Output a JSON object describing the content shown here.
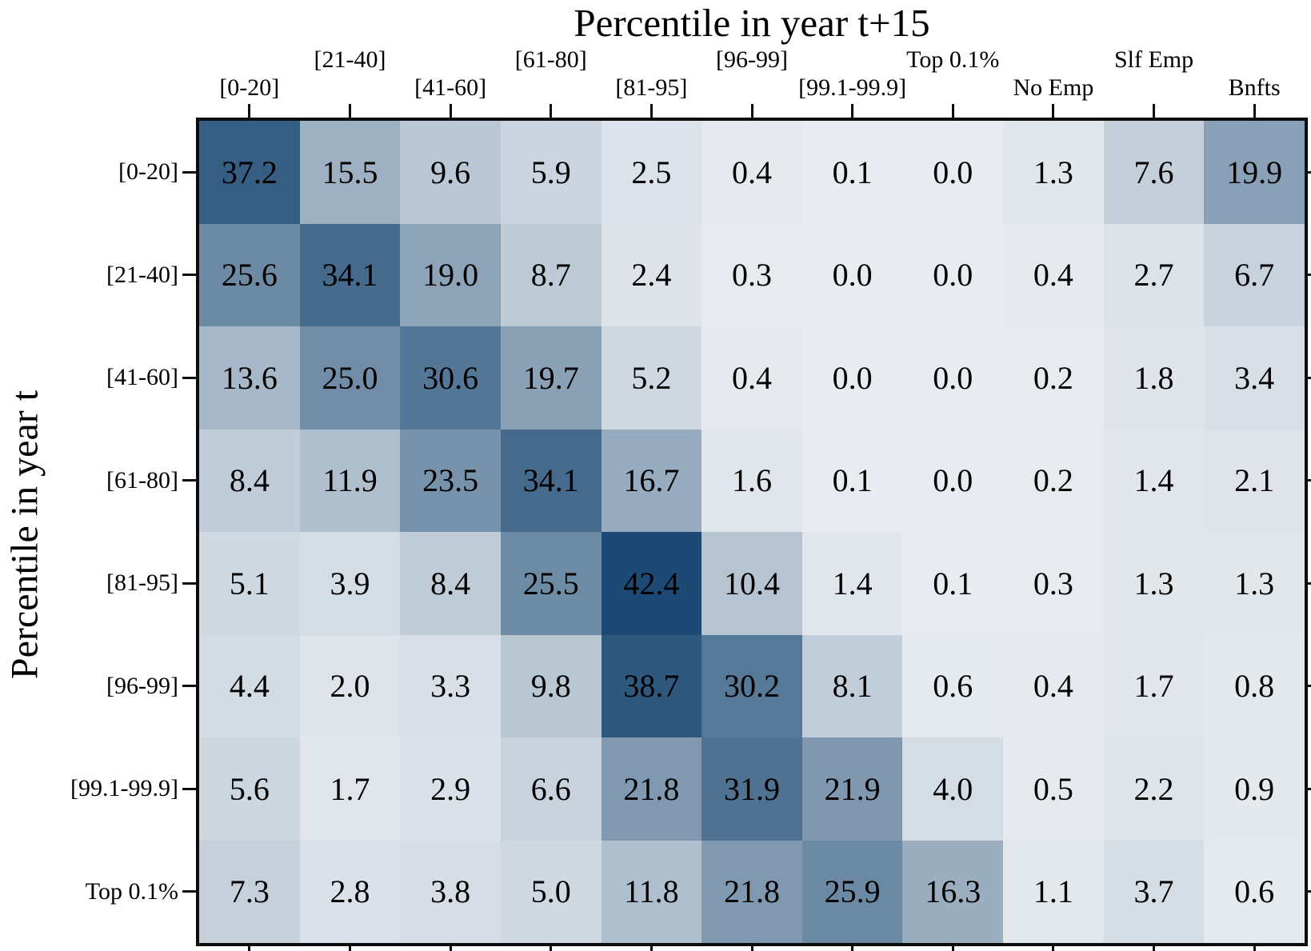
{
  "chart_data": {
    "type": "heatmap",
    "title": "Percentile in year t+15",
    "ylabel": "Percentile in year t",
    "legend_position": "none",
    "grid": false,
    "columns": [
      "[0-20]",
      "[21-40]",
      "[41-60]",
      "[61-80]",
      "[81-95]",
      "[96-99]",
      "[99.1-99.9]",
      "Top 0.1%",
      "No Emp",
      "Slf Emp",
      "Bnfts"
    ],
    "rows": [
      "[0-20]",
      "[21-40]",
      "[41-60]",
      "[61-80]",
      "[81-95]",
      "[96-99]",
      "[99.1-99.9]",
      "Top 0.1%"
    ],
    "values": [
      [
        37.2,
        15.5,
        9.6,
        5.9,
        2.5,
        0.4,
        0.1,
        0.0,
        1.3,
        7.6,
        19.9
      ],
      [
        25.6,
        34.1,
        19.0,
        8.7,
        2.4,
        0.3,
        0.0,
        0.0,
        0.4,
        2.7,
        6.7
      ],
      [
        13.6,
        25.0,
        30.6,
        19.7,
        5.2,
        0.4,
        0.0,
        0.0,
        0.2,
        1.8,
        3.4
      ],
      [
        8.4,
        11.9,
        23.5,
        34.1,
        16.7,
        1.6,
        0.1,
        0.0,
        0.2,
        1.4,
        2.1
      ],
      [
        5.1,
        3.9,
        8.4,
        25.5,
        42.4,
        10.4,
        1.4,
        0.1,
        0.3,
        1.3,
        1.3
      ],
      [
        4.4,
        2.0,
        3.3,
        9.8,
        38.7,
        30.2,
        8.1,
        0.6,
        0.4,
        1.7,
        0.8
      ],
      [
        5.6,
        1.7,
        2.9,
        6.6,
        21.8,
        31.9,
        21.9,
        4.0,
        0.5,
        2.2,
        0.9
      ],
      [
        7.3,
        2.8,
        3.8,
        5.0,
        11.8,
        21.8,
        25.9,
        16.3,
        1.1,
        3.7,
        0.6
      ]
    ],
    "value_decimals": 1,
    "vmin": 0,
    "vmax": 42.4,
    "color_low": "#e8ecf0",
    "color_high": "#1d4a74",
    "text_color": "#000000"
  }
}
